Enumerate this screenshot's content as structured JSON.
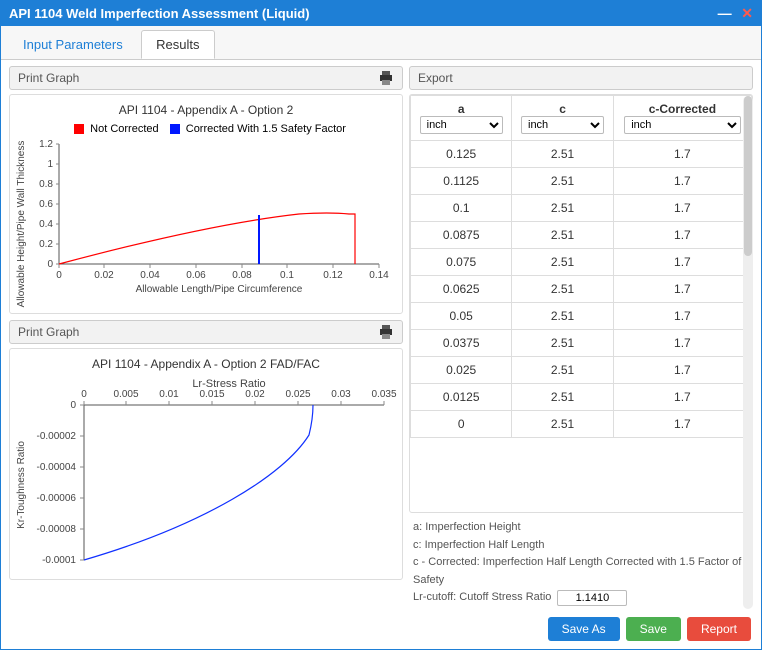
{
  "window": {
    "title": "API 1104 Weld Imperfection Assessment (Liquid)"
  },
  "tabs": {
    "input": "Input Parameters",
    "results": "Results",
    "active": "results"
  },
  "left": {
    "printLabel": "Print Graph",
    "chart1": {
      "title": "API 1104 - Appendix A - Option 2",
      "legend": {
        "series1": "Not Corrected",
        "series2": "Corrected With 1.5 Safety Factor"
      },
      "colors": {
        "series1": "#ff0000",
        "series2": "#0018ff"
      },
      "xLabel": "Allowable Length/Pipe Circumference",
      "yLabel": "Allowable Height/Pipe Wall Thickness",
      "xTicks": [
        "0",
        "0.02",
        "0.04",
        "0.06",
        "0.08",
        "0.1",
        "0.12",
        "0.14"
      ],
      "yTicks": [
        "0",
        "0.2",
        "0.4",
        "0.6",
        "0.8",
        "1",
        "1.2"
      ]
    },
    "chart2": {
      "title": "API 1104 - Appendix A - Option 2 FAD/FAC",
      "xLabel": "Lr-Stress Ratio",
      "yLabel": "Kr-Toughness Ratio",
      "color": "#1030ff",
      "xTicks": [
        "0",
        "0.005",
        "0.01",
        "0.015",
        "0.02",
        "0.025",
        "0.03",
        "0.035"
      ],
      "yTicks": [
        "0",
        "-0.00002",
        "-0.00004",
        "-0.00006",
        "-0.00008",
        "-0.0001"
      ]
    }
  },
  "right": {
    "exportLabel": "Export",
    "table": {
      "headers": {
        "a": "a",
        "c": "c",
        "cc": "c-Corrected"
      },
      "units": {
        "a": "inch",
        "c": "inch",
        "cc": "inch"
      },
      "rows": [
        {
          "a": "0.125",
          "c": "2.51",
          "cc": "1.7"
        },
        {
          "a": "0.1125",
          "c": "2.51",
          "cc": "1.7"
        },
        {
          "a": "0.1",
          "c": "2.51",
          "cc": "1.7"
        },
        {
          "a": "0.0875",
          "c": "2.51",
          "cc": "1.7"
        },
        {
          "a": "0.075",
          "c": "2.51",
          "cc": "1.7"
        },
        {
          "a": "0.0625",
          "c": "2.51",
          "cc": "1.7"
        },
        {
          "a": "0.05",
          "c": "2.51",
          "cc": "1.7"
        },
        {
          "a": "0.0375",
          "c": "2.51",
          "cc": "1.7"
        },
        {
          "a": "0.025",
          "c": "2.51",
          "cc": "1.7"
        },
        {
          "a": "0.0125",
          "c": "2.51",
          "cc": "1.7"
        },
        {
          "a": "0",
          "c": "2.51",
          "cc": "1.7"
        }
      ]
    },
    "notes": {
      "a": "a: Imperfection Height",
      "c": "c: Imperfection Half Length",
      "cc": "c - Corrected: Imperfection Half Length Corrected with 1.5 Factor of Safety",
      "lrLabel": "Lr-cutoff: Cutoff Stress Ratio",
      "lrValue": "1.1410"
    }
  },
  "footer": {
    "saveAs": "Save As",
    "save": "Save",
    "report": "Report"
  }
}
